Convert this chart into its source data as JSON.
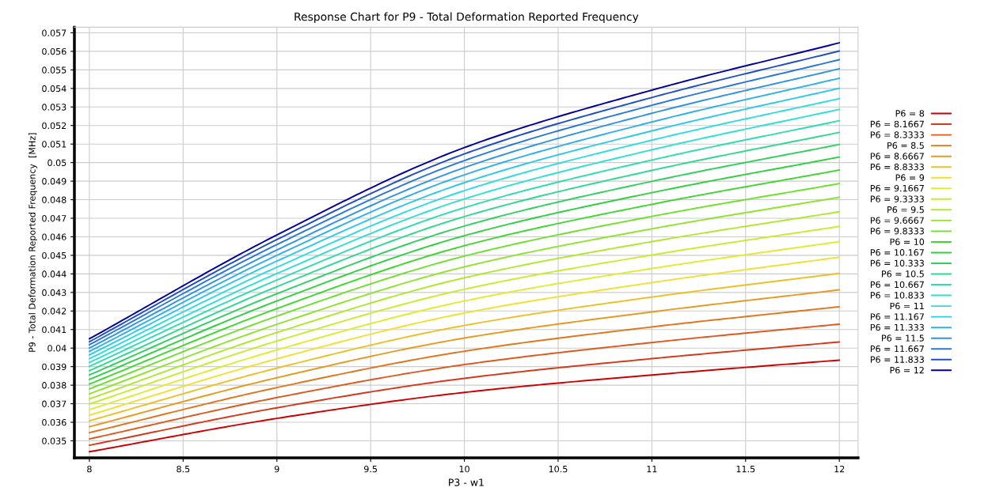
{
  "chart_data": {
    "type": "line",
    "title": "Response Chart for P9 - Total Deformation Reported Frequency",
    "xlabel": "P3 - w1",
    "ylabel": "P9 - Total Deformation Reported Frequency  [MHz]",
    "x": [
      8,
      9,
      10,
      11,
      12
    ],
    "xlim": [
      7.92,
      12.1
    ],
    "xticks": [
      8,
      8.5,
      9,
      9.5,
      10,
      10.5,
      11,
      11.5,
      12
    ],
    "ylim": [
      0.03408,
      0.0573
    ],
    "yticks": [
      0.035,
      0.036,
      0.037,
      0.038,
      0.039,
      0.04,
      0.041,
      0.042,
      0.043,
      0.044,
      0.045,
      0.046,
      0.047,
      0.048,
      0.049,
      0.05,
      0.051,
      0.052,
      0.053,
      0.054,
      0.055,
      0.056,
      0.057
    ],
    "grid": true,
    "legend": "right",
    "marker": "none",
    "line_style": "solid",
    "series": [
      {
        "name": "P6 = 8",
        "color": "#cc0000",
        "values": [
          0.03441,
          0.03621,
          0.03761,
          0.03855,
          0.03935
        ]
      },
      {
        "name": "P6 = 8.1667",
        "color": "#d43a1a",
        "values": [
          0.03476,
          0.03678,
          0.03837,
          0.03943,
          0.04033
        ]
      },
      {
        "name": "P6 = 8.3333",
        "color": "#dc5a1e",
        "values": [
          0.0351,
          0.03733,
          0.03911,
          0.0403,
          0.04129
        ]
      },
      {
        "name": "P6 = 8.5",
        "color": "#e0761e",
        "values": [
          0.03544,
          0.03787,
          0.03983,
          0.04114,
          0.04223
        ]
      },
      {
        "name": "P6 = 8.6667",
        "color": "#e69a22",
        "values": [
          0.03576,
          0.0384,
          0.04054,
          0.04195,
          0.04314
        ]
      },
      {
        "name": "P6 = 8.8333",
        "color": "#ecc02a",
        "values": [
          0.03608,
          0.03892,
          0.04122,
          0.04275,
          0.04403
        ]
      },
      {
        "name": "P6 = 9",
        "color": "#f0e030",
        "values": [
          0.03638,
          0.03942,
          0.04189,
          0.04353,
          0.0449
        ]
      },
      {
        "name": "P6 = 9.1667",
        "color": "#e0ec30",
        "values": [
          0.03668,
          0.0399,
          0.04254,
          0.04429,
          0.04574
        ]
      },
      {
        "name": "P6 = 9.3333",
        "color": "#c8ec30",
        "values": [
          0.03698,
          0.04038,
          0.04317,
          0.04502,
          0.04656
        ]
      },
      {
        "name": "P6 = 9.5",
        "color": "#b0e830",
        "values": [
          0.03726,
          0.04084,
          0.04379,
          0.04574,
          0.04735
        ]
      },
      {
        "name": "P6 = 9.6667",
        "color": "#90e430",
        "values": [
          0.03753,
          0.04128,
          0.04438,
          0.04643,
          0.04813
        ]
      },
      {
        "name": "P6 = 9.8333",
        "color": "#70e030",
        "values": [
          0.0378,
          0.04172,
          0.04496,
          0.0471,
          0.04887
        ]
      },
      {
        "name": "P6 = 10",
        "color": "#40d830",
        "values": [
          0.03806,
          0.04213,
          0.04552,
          0.04775,
          0.0496
        ]
      },
      {
        "name": "P6 = 10.167",
        "color": "#30d040",
        "values": [
          0.03831,
          0.04254,
          0.04606,
          0.04838,
          0.0503
        ]
      },
      {
        "name": "P6 = 10.333",
        "color": "#30d060",
        "values": [
          0.03855,
          0.04293,
          0.04658,
          0.04899,
          0.05098
        ]
      },
      {
        "name": "P6 = 10.5",
        "color": "#30d890",
        "values": [
          0.03878,
          0.04331,
          0.04709,
          0.04958,
          0.05163
        ]
      },
      {
        "name": "P6 = 10.667",
        "color": "#30dcb0",
        "values": [
          0.03901,
          0.04367,
          0.04757,
          0.05014,
          0.05226
        ]
      },
      {
        "name": "P6 = 10.833",
        "color": "#30e0d0",
        "values": [
          0.03922,
          0.04402,
          0.04804,
          0.05069,
          0.05287
        ]
      },
      {
        "name": "P6 = 11",
        "color": "#30dce0",
        "values": [
          0.03943,
          0.04436,
          0.04849,
          0.05121,
          0.05345
        ]
      },
      {
        "name": "P6 = 11.167",
        "color": "#30c8e8",
        "values": [
          0.03963,
          0.04469,
          0.04892,
          0.05171,
          0.05401
        ]
      },
      {
        "name": "P6 = 11.333",
        "color": "#30b0e8",
        "values": [
          0.03982,
          0.045,
          0.04934,
          0.05219,
          0.05455
        ]
      },
      {
        "name": "P6 = 11.5",
        "color": "#3094e0",
        "values": [
          0.04,
          0.04529,
          0.04973,
          0.05266,
          0.05506
        ]
      },
      {
        "name": "P6 = 11.667",
        "color": "#2878d8",
        "values": [
          0.04018,
          0.04558,
          0.05011,
          0.05309,
          0.05555
        ]
      },
      {
        "name": "P6 = 11.833",
        "color": "#2050c0",
        "values": [
          0.04034,
          0.04585,
          0.05047,
          0.05351,
          0.05602
        ]
      },
      {
        "name": "P6 = 12",
        "color": "#000099",
        "values": [
          0.0405,
          0.0461,
          0.05081,
          0.05391,
          0.05646
        ]
      }
    ]
  }
}
